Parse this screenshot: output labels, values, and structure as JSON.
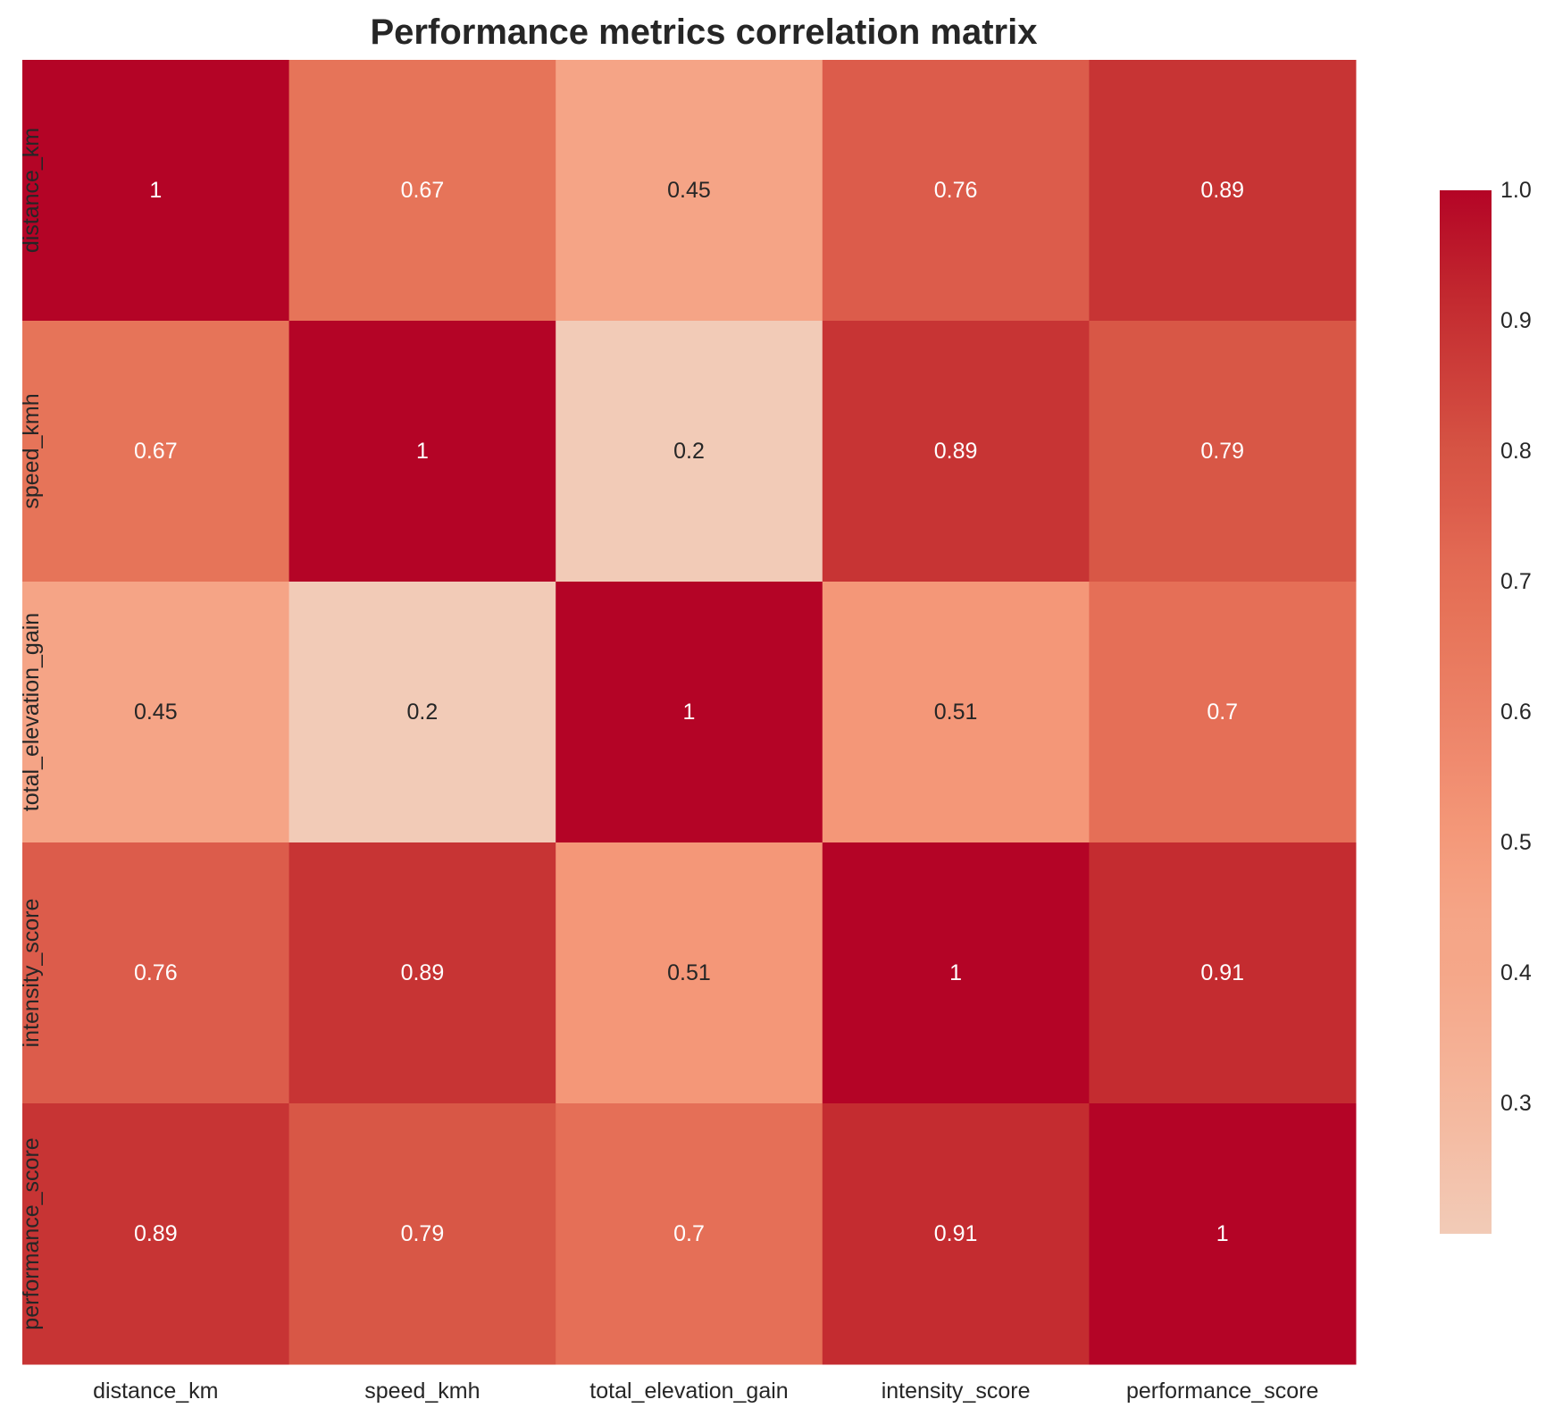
{
  "chart_data": {
    "type": "heatmap",
    "title": "Performance metrics correlation matrix",
    "row_labels": [
      "distance_km",
      "speed_kmh",
      "total_elevation_gain",
      "intensity_score",
      "performance_score"
    ],
    "col_labels": [
      "distance_km",
      "speed_kmh",
      "total_elevation_gain",
      "intensity_score",
      "performance_score"
    ],
    "values": [
      [
        1,
        0.67,
        0.45,
        0.76,
        0.89
      ],
      [
        0.67,
        1,
        0.2,
        0.89,
        0.79
      ],
      [
        0.45,
        0.2,
        1,
        0.51,
        0.7
      ],
      [
        0.76,
        0.89,
        0.51,
        1,
        0.91
      ],
      [
        0.89,
        0.79,
        0.7,
        0.91,
        1
      ]
    ],
    "value_labels": [
      [
        "1",
        "0.67",
        "0.45",
        "0.76",
        "0.89"
      ],
      [
        "0.67",
        "1",
        "0.2",
        "0.89",
        "0.79"
      ],
      [
        "0.45",
        "0.2",
        "1",
        "0.51",
        "0.7"
      ],
      [
        "0.76",
        "0.89",
        "0.51",
        "1",
        "0.91"
      ],
      [
        "0.89",
        "0.79",
        "0.7",
        "0.91",
        "1"
      ]
    ],
    "colorbar": {
      "vmin": 0.2,
      "vmax": 1.0,
      "ticks": [
        0.3,
        0.4,
        0.5,
        0.6,
        0.7,
        0.8,
        0.9,
        1.0
      ],
      "tick_labels": [
        "0.3",
        "0.4",
        "0.5",
        "0.6",
        "0.7",
        "0.8",
        "0.9",
        "1.0"
      ]
    },
    "colormap": "coolwarm",
    "grid": false
  }
}
